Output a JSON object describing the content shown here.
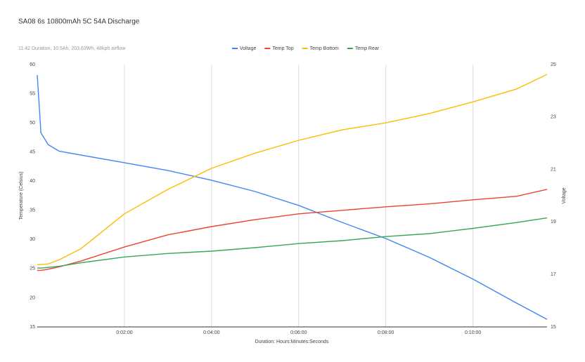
{
  "chart_data": {
    "type": "line",
    "title": "SA08 6s 10800mAh 5C 54A Discharge",
    "subtitle": "11:42 Duration, 10.5Ah, 203.63Wh, 48kph airflow",
    "x_label": "Duration: Hours:Minutes:Seconds",
    "y_label": "Temperature (Celsius)",
    "y2_label": "Voltage",
    "x": [
      0,
      5,
      15,
      30,
      60,
      120,
      180,
      240,
      300,
      360,
      420,
      480,
      540,
      600,
      660,
      702
    ],
    "series": [
      {
        "name": "Voltage",
        "color": "#4285f4",
        "axis": "y2",
        "values": [
          24.6,
          22.4,
          21.95,
          21.7,
          21.55,
          21.26,
          20.96,
          20.59,
          20.16,
          19.63,
          18.98,
          18.37,
          17.65,
          16.82,
          15.91,
          15.29
        ]
      },
      {
        "name": "Temp Top",
        "color": "#ea4335",
        "values": [
          24.7,
          24.7,
          24.9,
          25.3,
          26.3,
          28.7,
          30.8,
          32.2,
          33.4,
          34.4,
          35.0,
          35.6,
          36.1,
          36.8,
          37.4,
          38.6
        ]
      },
      {
        "name": "Temp Bottom",
        "color": "#fbbc04",
        "values": [
          25.7,
          25.7,
          25.8,
          26.5,
          28.4,
          34.4,
          38.6,
          42.2,
          44.8,
          47.0,
          48.8,
          50.0,
          51.6,
          53.6,
          55.8,
          58.3
        ]
      },
      {
        "name": "Temp Rear",
        "color": "#34a853",
        "values": [
          25.1,
          25.1,
          25.2,
          25.4,
          26.0,
          27.0,
          27.6,
          28.0,
          28.6,
          29.3,
          29.8,
          30.5,
          31.0,
          31.9,
          32.9,
          33.7
        ]
      }
    ],
    "xlim": [
      0,
      702
    ],
    "xticks": [
      {
        "value": 120,
        "label": "0:02:00"
      },
      {
        "value": 240,
        "label": "0:04:00"
      },
      {
        "value": 360,
        "label": "0:06:00"
      },
      {
        "value": 480,
        "label": "0:08:00"
      },
      {
        "value": 600,
        "label": "0:10:00"
      }
    ],
    "ylim": [
      15,
      60
    ],
    "yticks": [
      15,
      20,
      25,
      30,
      35,
      40,
      45,
      50,
      55,
      60
    ],
    "y2lim": [
      15,
      25
    ],
    "y2ticks": [
      15,
      17,
      19,
      21,
      23,
      25
    ],
    "grid": true,
    "legend": "top"
  }
}
